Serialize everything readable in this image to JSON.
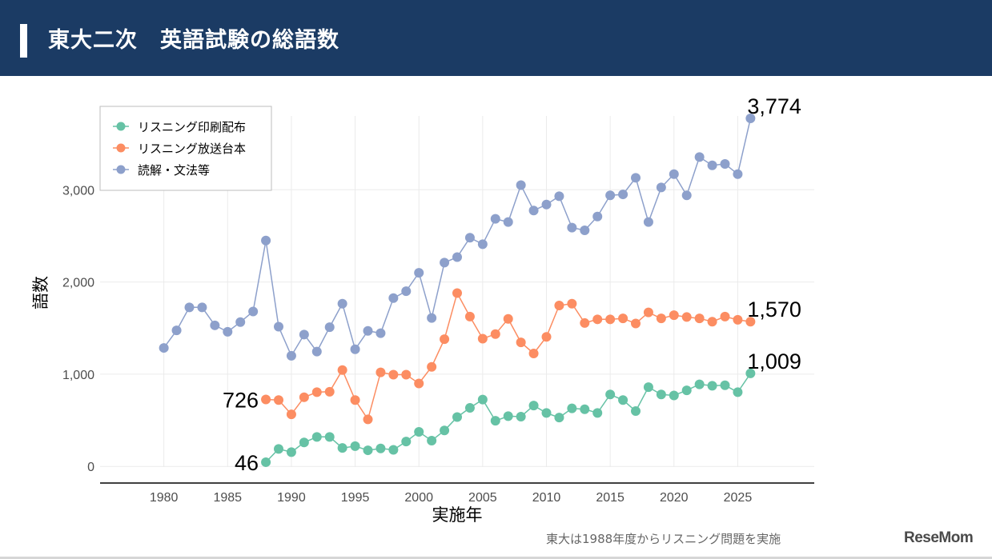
{
  "header": {
    "title": "東大二次　英語試験の総語数"
  },
  "colors": {
    "header_bg": "#1b3b64",
    "print": "#66c2a5",
    "broadcast": "#fc8d62",
    "reading": "#8da0cb"
  },
  "chart_data": {
    "type": "line",
    "xlabel": "実施年",
    "ylabel": "語数",
    "xlim": [
      1975,
      2031
    ],
    "ylim": [
      -180,
      4130
    ],
    "xticks": [
      1980,
      1985,
      1990,
      1995,
      2000,
      2005,
      2010,
      2015,
      2020,
      2025
    ],
    "xtick_labels": [
      "1980",
      "1985",
      "1990",
      "1995",
      "2000",
      "2005",
      "2010",
      "2015",
      "2020",
      "2025"
    ],
    "yticks": [
      0,
      1000,
      2000,
      3000
    ],
    "ytick_labels": [
      "0",
      "1,000",
      "2,000",
      "3,000"
    ],
    "legend_position": "top-left",
    "series": [
      {
        "name": "リスニング印刷配布",
        "color": "#66c2a5",
        "x": [
          1988,
          1989,
          1990,
          1991,
          1992,
          1993,
          1994,
          1995,
          1996,
          1997,
          1998,
          1999,
          2000,
          2001,
          2002,
          2003,
          2004,
          2005,
          2006,
          2007,
          2008,
          2009,
          2010,
          2011,
          2012,
          2013,
          2014,
          2015,
          2016,
          2017,
          2018,
          2019,
          2020,
          2021,
          2022,
          2023,
          2024,
          2025,
          2026
        ],
        "values": [
          46,
          190,
          155,
          260,
          320,
          320,
          200,
          220,
          175,
          195,
          180,
          270,
          375,
          280,
          390,
          535,
          635,
          725,
          495,
          545,
          540,
          660,
          580,
          530,
          630,
          620,
          580,
          780,
          720,
          600,
          860,
          780,
          770,
          825,
          890,
          875,
          880,
          805,
          1009
        ],
        "start_label": "46",
        "end_label": "1,009"
      },
      {
        "name": "リスニング放送台本",
        "color": "#fc8d62",
        "x": [
          1988,
          1989,
          1990,
          1991,
          1992,
          1993,
          1994,
          1995,
          1996,
          1997,
          1998,
          1999,
          2000,
          2001,
          2002,
          2003,
          2004,
          2005,
          2006,
          2007,
          2008,
          2009,
          2010,
          2011,
          2012,
          2013,
          2014,
          2015,
          2016,
          2017,
          2018,
          2019,
          2020,
          2021,
          2022,
          2023,
          2024,
          2025,
          2026
        ],
        "values": [
          726,
          720,
          565,
          750,
          805,
          810,
          1045,
          720,
          510,
          1020,
          995,
          995,
          900,
          1080,
          1380,
          1880,
          1625,
          1385,
          1435,
          1600,
          1345,
          1225,
          1405,
          1745,
          1765,
          1555,
          1595,
          1595,
          1605,
          1550,
          1670,
          1605,
          1640,
          1620,
          1605,
          1570,
          1625,
          1590,
          1570
        ],
        "start_label": "726",
        "end_label": "1,570"
      },
      {
        "name": "読解・文法等",
        "color": "#8da0cb",
        "x": [
          1980,
          1981,
          1982,
          1983,
          1984,
          1985,
          1986,
          1987,
          1988,
          1989,
          1990,
          1991,
          1992,
          1993,
          1994,
          1995,
          1996,
          1997,
          1998,
          1999,
          2000,
          2001,
          2002,
          2003,
          2004,
          2005,
          2006,
          2007,
          2008,
          2009,
          2010,
          2011,
          2012,
          2013,
          2014,
          2015,
          2016,
          2017,
          2018,
          2019,
          2020,
          2021,
          2022,
          2023,
          2024,
          2025,
          2026
        ],
        "values": [
          1285,
          1475,
          1725,
          1725,
          1530,
          1460,
          1565,
          1680,
          2450,
          1515,
          1200,
          1430,
          1245,
          1510,
          1765,
          1270,
          1470,
          1445,
          1825,
          1900,
          2100,
          1610,
          2210,
          2270,
          2480,
          2410,
          2685,
          2650,
          3050,
          2775,
          2840,
          2930,
          2590,
          2560,
          2710,
          2940,
          2950,
          3130,
          2650,
          3025,
          3170,
          2940,
          3355,
          3265,
          3280,
          3170,
          3774
        ],
        "end_label": "3,774"
      }
    ],
    "footnote": "東大は1988年度からリスニング問題を実施"
  },
  "branding": {
    "logo": "ReseMom"
  }
}
